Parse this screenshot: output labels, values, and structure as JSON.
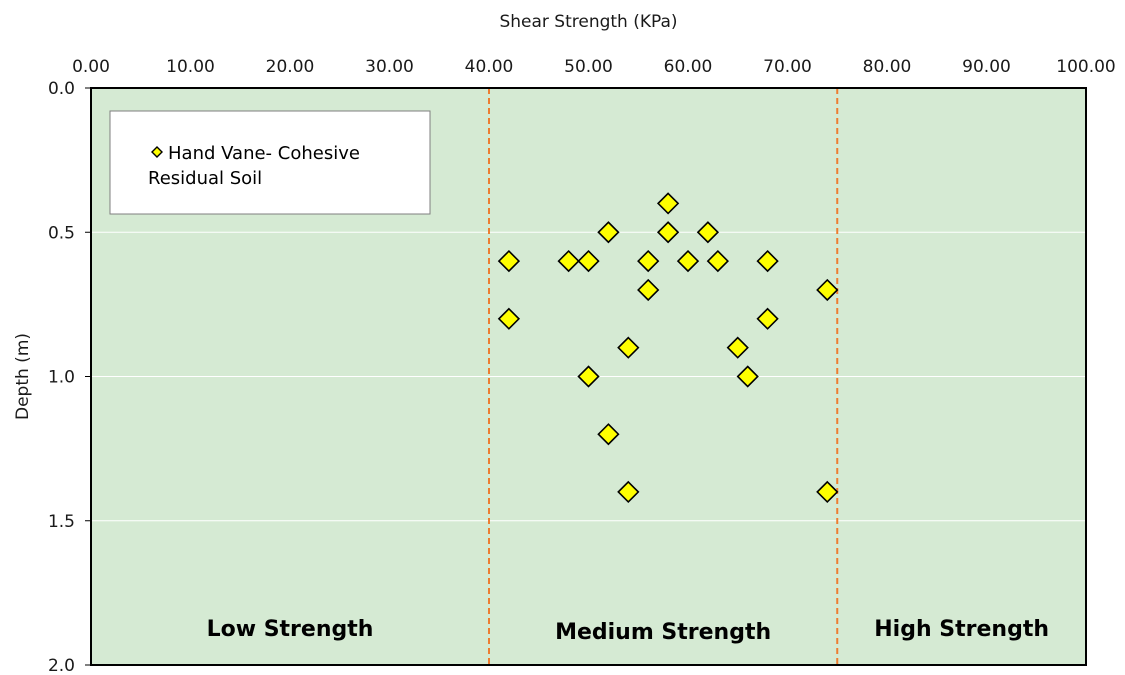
{
  "chart_data": {
    "type": "scatter",
    "xlabel": "Shear Strength (KPa)",
    "ylabel": "Depth (m)",
    "x_ticks": [
      "0.00",
      "10.00",
      "20.00",
      "30.00",
      "40.00",
      "50.00",
      "60.00",
      "70.00",
      "80.00",
      "90.00",
      "100.00"
    ],
    "y_ticks": [
      "0.0",
      "0.5",
      "1.0",
      "1.5",
      "2.0"
    ],
    "xlim": [
      0,
      100
    ],
    "ylim": [
      0,
      2.0
    ],
    "y_inverted": true,
    "x_axis_position": "top",
    "grid": "horizontal",
    "legend_position": "top-left",
    "thresholds": [
      40,
      75
    ],
    "zones": [
      {
        "label": "Low Strength",
        "center_x": 20
      },
      {
        "label": "Medium Strength",
        "center_x": 57.5
      },
      {
        "label": "High Strength",
        "center_x": 87.5
      }
    ],
    "series": [
      {
        "name": "Hand Vane- Cohesive Residual Soil",
        "legend_lines": [
          "Hand Vane- Cohesive",
          "Residual Soil"
        ],
        "marker": "diamond",
        "color": "#ffff00",
        "edge_color": "#000000",
        "points": [
          {
            "x": 58,
            "y": 0.4
          },
          {
            "x": 52,
            "y": 0.5
          },
          {
            "x": 58,
            "y": 0.5
          },
          {
            "x": 62,
            "y": 0.5
          },
          {
            "x": 42,
            "y": 0.6
          },
          {
            "x": 48,
            "y": 0.6
          },
          {
            "x": 50,
            "y": 0.6
          },
          {
            "x": 56,
            "y": 0.6
          },
          {
            "x": 60,
            "y": 0.6
          },
          {
            "x": 63,
            "y": 0.6
          },
          {
            "x": 68,
            "y": 0.6
          },
          {
            "x": 56,
            "y": 0.7
          },
          {
            "x": 74,
            "y": 0.7
          },
          {
            "x": 42,
            "y": 0.8
          },
          {
            "x": 68,
            "y": 0.8
          },
          {
            "x": 54,
            "y": 0.9
          },
          {
            "x": 65,
            "y": 0.9
          },
          {
            "x": 50,
            "y": 1.0
          },
          {
            "x": 66,
            "y": 1.0
          },
          {
            "x": 52,
            "y": 1.2
          },
          {
            "x": 54,
            "y": 1.4
          },
          {
            "x": 74,
            "y": 1.4
          }
        ]
      }
    ],
    "colors": {
      "plot_background": "#d5ead3",
      "threshold_line": "#ed7d31",
      "gridline": "#ffffff"
    }
  }
}
